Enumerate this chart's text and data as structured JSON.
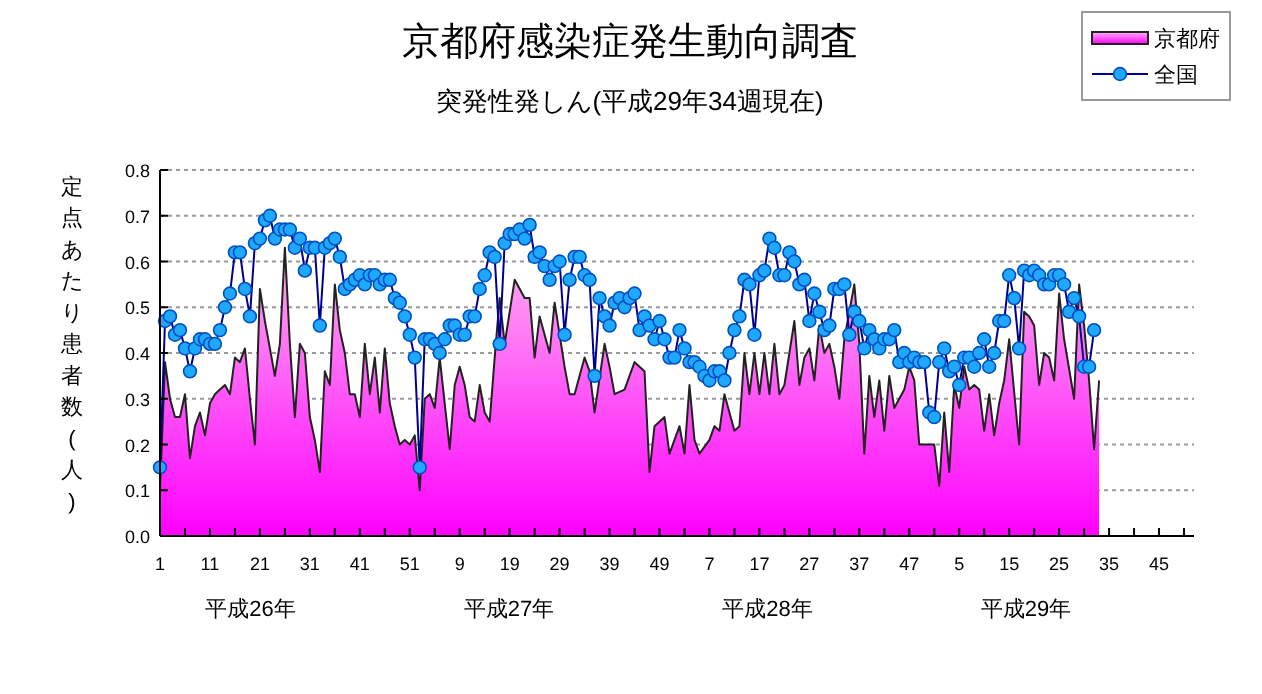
{
  "chart_data": {
    "type": "line",
    "title": "京都府感染症発生動向調査",
    "subtitle": "突発性発しん(平成29年34週現在)",
    "ylabel": "定点あたり患者数(人)",
    "categories": [
      "1",
      null,
      null,
      null,
      null,
      null,
      null,
      null,
      null,
      null,
      "11",
      null,
      null,
      null,
      null,
      null,
      null,
      null,
      null,
      null,
      "21",
      null,
      null,
      null,
      null,
      null,
      null,
      null,
      null,
      null,
      "31",
      null,
      null,
      null,
      null,
      null,
      null,
      null,
      null,
      null,
      "41",
      null,
      null,
      null,
      null,
      null,
      null,
      null,
      null,
      null,
      "51",
      null,
      null,
      null,
      null,
      null,
      null,
      null,
      null,
      null,
      "9",
      null,
      null,
      null,
      null,
      null,
      null,
      null,
      null,
      null,
      "19",
      null,
      null,
      null,
      null,
      null,
      null,
      null,
      null,
      null,
      "29",
      null,
      null,
      null,
      null,
      null,
      null,
      null,
      null,
      null,
      "39",
      null,
      null,
      null,
      null,
      null,
      null,
      null,
      null,
      null,
      "49",
      null,
      null,
      null,
      null,
      null,
      null,
      null,
      null,
      null,
      "7",
      null,
      null,
      null,
      null,
      null,
      null,
      null,
      null,
      null,
      "17",
      null,
      null,
      null,
      null,
      null,
      null,
      null,
      null,
      null,
      "27",
      null,
      null,
      null,
      null,
      null,
      null,
      null,
      null,
      null,
      "37",
      null,
      null,
      null,
      null,
      null,
      null,
      null,
      null,
      null,
      "47",
      null,
      null,
      null,
      null,
      null,
      null,
      null,
      null,
      null,
      "5",
      null,
      null,
      null,
      null,
      null,
      null,
      null,
      null,
      null,
      "15",
      null,
      null,
      null,
      null,
      null,
      null,
      null,
      null,
      null,
      "25",
      null,
      null,
      null,
      null,
      null,
      null,
      null,
      null,
      null,
      "35",
      null,
      null,
      null,
      null,
      null,
      null,
      null,
      null,
      null,
      "45",
      null,
      null,
      null,
      null,
      null,
      null,
      null
    ],
    "ylim": [
      0,
      0.8
    ],
    "yticks": [
      {
        "value": 0,
        "label": "0.0"
      },
      {
        "value": 0.1,
        "label": "0.1"
      },
      {
        "value": 0.2,
        "label": "0.2"
      },
      {
        "value": 0.3,
        "label": "0.3"
      },
      {
        "value": 0.4,
        "label": "0.4"
      },
      {
        "value": 0.5,
        "label": "0.5"
      },
      {
        "value": 0.6,
        "label": "0.6"
      },
      {
        "value": 0.7,
        "label": "0.7"
      },
      {
        "value": 0.8,
        "label": "0.8"
      }
    ],
    "grid": "y",
    "legend": "top right",
    "annotations": [
      "平成26年",
      "平成27年",
      "平成28年",
      "平成29年"
    ],
    "series": [
      {
        "name": "京都府",
        "type": "area",
        "color": "#ff00ff",
        "values": [
          0.1,
          0.38,
          0.3,
          0.26,
          0.26,
          0.31,
          0.17,
          0.24,
          0.27,
          0.22,
          0.29,
          0.31,
          0.32,
          0.33,
          0.31,
          0.39,
          0.38,
          0.41,
          0.3,
          0.2,
          0.54,
          0.47,
          0.41,
          0.35,
          0.42,
          0.63,
          0.42,
          0.26,
          0.42,
          0.4,
          0.26,
          0.21,
          0.14,
          0.36,
          0.33,
          0.55,
          0.45,
          0.4,
          0.31,
          0.31,
          0.26,
          0.42,
          0.31,
          0.39,
          0.27,
          0.41,
          0.29,
          0.24,
          0.2,
          0.21,
          0.2,
          0.22,
          0.1,
          0.3,
          0.31,
          0.28,
          0.39,
          null,
          0.19,
          0.33,
          0.37,
          0.33,
          0.26,
          0.25,
          0.33,
          0.27,
          0.25,
          0.39,
          0.52,
          0.42,
          null,
          0.56,
          null,
          0.52,
          0.52,
          0.39,
          0.48,
          null,
          0.4,
          0.51,
          null,
          0.37,
          0.31,
          0.31,
          null,
          0.39,
          0.36,
          0.27,
          null,
          0.42,
          0.37,
          0.31,
          null,
          0.32,
          null,
          0.38,
          null,
          0.36,
          0.14,
          0.24,
          null,
          0.26,
          0.18,
          null,
          0.24,
          0.18,
          0.33,
          0.21,
          0.18,
          null,
          0.21,
          0.24,
          0.23,
          0.31,
          0.27,
          0.23,
          0.24,
          0.4,
          0.31,
          0.4,
          0.31,
          0.4,
          0.31,
          0.42,
          0.31,
          0.33,
          0.4,
          0.47,
          0.33,
          0.39,
          0.41,
          0.34,
          0.46,
          0.4,
          0.42,
          0.37,
          0.3,
          0.43,
          null,
          0.55,
          0.42,
          0.18,
          0.35,
          0.26,
          0.34,
          0.23,
          0.35,
          0.28,
          0.3,
          0.32,
          0.37,
          0.34,
          0.2,
          0.2,
          null,
          0.2,
          0.11,
          0.27,
          0.14,
          0.33,
          0.28,
          0.37,
          0.32,
          0.33,
          0.32,
          0.23,
          0.31,
          0.22,
          0.29,
          0.34,
          0.43,
          null,
          0.2,
          0.49,
          0.48,
          0.46,
          0.33,
          0.4,
          0.39,
          0.34,
          0.53,
          0.43,
          null,
          0.3,
          0.55,
          0.46,
          0.34,
          0.19,
          0.34,
          null,
          null,
          null,
          null,
          null,
          null,
          null,
          null,
          null,
          null,
          null,
          null,
          null,
          null,
          null,
          null,
          null,
          null,
          null
        ]
      },
      {
        "name": "全国",
        "type": "line",
        "color": "#1ea8ff",
        "marker": "circle",
        "values": [
          0.15,
          0.47,
          0.48,
          0.44,
          0.45,
          0.41,
          0.36,
          0.41,
          0.43,
          0.43,
          0.42,
          0.42,
          0.45,
          0.5,
          0.53,
          0.62,
          0.62,
          0.54,
          0.48,
          0.64,
          0.65,
          0.69,
          0.7,
          0.65,
          0.67,
          0.67,
          0.67,
          0.63,
          0.65,
          0.58,
          0.63,
          0.63,
          0.46,
          0.63,
          0.64,
          0.65,
          0.61,
          0.54,
          0.55,
          0.56,
          0.57,
          0.55,
          0.57,
          0.57,
          0.55,
          0.56,
          0.56,
          0.52,
          0.51,
          0.48,
          0.44,
          0.39,
          0.15,
          0.43,
          0.43,
          0.42,
          0.4,
          0.43,
          0.46,
          0.46,
          0.44,
          0.44,
          0.48,
          0.48,
          0.54,
          0.57,
          0.62,
          0.61,
          0.42,
          0.64,
          0.66,
          0.66,
          0.67,
          0.65,
          0.68,
          0.61,
          0.62,
          0.59,
          0.56,
          0.59,
          0.6,
          0.44,
          0.56,
          0.61,
          0.61,
          0.57,
          0.56,
          0.35,
          0.52,
          0.48,
          0.46,
          0.51,
          0.52,
          0.5,
          0.52,
          0.53,
          0.45,
          0.48,
          0.46,
          0.43,
          0.47,
          0.43,
          0.39,
          0.39,
          0.45,
          0.41,
          0.38,
          0.38,
          0.37,
          0.35,
          0.34,
          0.36,
          0.36,
          0.34,
          0.4,
          0.45,
          0.48,
          0.56,
          0.55,
          0.44,
          0.57,
          0.58,
          0.65,
          0.63,
          0.57,
          0.57,
          0.62,
          0.6,
          0.55,
          0.56,
          0.47,
          0.53,
          0.49,
          0.45,
          0.46,
          0.54,
          0.54,
          0.55,
          0.44,
          0.49,
          0.47,
          0.41,
          0.45,
          0.43,
          0.41,
          0.43,
          0.43,
          0.45,
          0.38,
          0.4,
          0.38,
          0.39,
          0.38,
          0.38,
          0.27,
          0.26,
          0.38,
          0.41,
          0.36,
          0.37,
          0.33,
          0.39,
          0.39,
          0.37,
          0.4,
          0.43,
          0.37,
          0.4,
          0.47,
          0.47,
          0.57,
          0.52,
          0.41,
          0.58,
          0.57,
          0.58,
          0.57,
          0.55,
          0.55,
          0.57,
          0.57,
          0.55,
          0.49,
          0.52,
          0.48,
          0.37,
          0.37,
          0.45,
          null,
          null,
          null,
          null,
          null,
          null,
          null,
          null,
          null,
          null,
          null,
          null,
          null,
          null,
          null,
          null,
          null,
          null,
          null,
          null
        ]
      }
    ]
  }
}
